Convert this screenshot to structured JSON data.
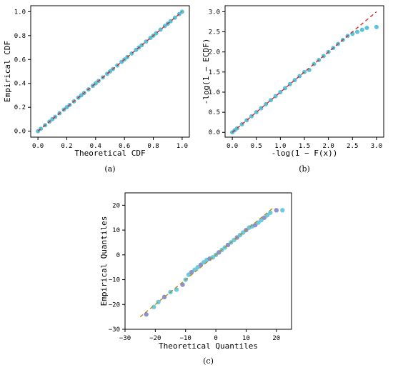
{
  "colors": {
    "points": "#46bdd6",
    "points_c": "#5fc3dc",
    "points_c_dark": "#7f86c6",
    "ref_line": "#d62728",
    "ref_line_c": "#b88a1c"
  },
  "chart_data": [
    {
      "id": "a",
      "type": "scatter",
      "panel_label": "(a)",
      "xlabel": "Theoretical CDF",
      "ylabel": "Empirical CDF",
      "xlim": [
        -0.05,
        1.05
      ],
      "ylim": [
        -0.05,
        1.05
      ],
      "xticks": [
        0.0,
        0.2,
        0.4,
        0.6,
        0.8,
        1.0
      ],
      "yticks": [
        0.0,
        0.2,
        0.4,
        0.6,
        0.8,
        1.0
      ],
      "xtick_labels": [
        "0.0",
        "0.2",
        "0.4",
        "0.6",
        "0.8",
        "1.0"
      ],
      "ytick_labels": [
        "0.0",
        "0.2",
        "0.4",
        "0.6",
        "0.8",
        "1.0"
      ],
      "ref_line": {
        "style": "dashed",
        "x": [
          0,
          1
        ],
        "y": [
          0,
          1
        ]
      },
      "points": {
        "x": [
          0.0,
          0.02,
          0.05,
          0.08,
          0.1,
          0.12,
          0.15,
          0.18,
          0.2,
          0.22,
          0.25,
          0.28,
          0.3,
          0.32,
          0.35,
          0.38,
          0.4,
          0.42,
          0.45,
          0.48,
          0.5,
          0.52,
          0.55,
          0.58,
          0.6,
          0.62,
          0.65,
          0.68,
          0.7,
          0.72,
          0.75,
          0.78,
          0.8,
          0.82,
          0.85,
          0.88,
          0.9,
          0.92,
          0.95,
          0.98,
          1.0
        ],
        "y": [
          0.0,
          0.02,
          0.05,
          0.08,
          0.1,
          0.12,
          0.15,
          0.18,
          0.2,
          0.22,
          0.25,
          0.28,
          0.3,
          0.32,
          0.35,
          0.38,
          0.4,
          0.42,
          0.45,
          0.48,
          0.5,
          0.52,
          0.55,
          0.58,
          0.6,
          0.62,
          0.65,
          0.68,
          0.7,
          0.72,
          0.75,
          0.78,
          0.8,
          0.82,
          0.85,
          0.88,
          0.9,
          0.92,
          0.95,
          0.98,
          1.0
        ]
      }
    },
    {
      "id": "b",
      "type": "scatter",
      "panel_label": "(b)",
      "xlabel": "-log(1 − F(x))",
      "ylabel": "-log(1 − ECDF)",
      "xlim": [
        -0.15,
        3.15
      ],
      "ylim": [
        -0.12,
        3.15
      ],
      "xticks": [
        0.0,
        0.5,
        1.0,
        1.5,
        2.0,
        2.5,
        3.0
      ],
      "yticks": [
        0.0,
        0.5,
        1.0,
        1.5,
        2.0,
        2.5,
        3.0
      ],
      "xtick_labels": [
        "0.0",
        "0.5",
        "1.0",
        "1.5",
        "2.0",
        "2.5",
        "3.0"
      ],
      "ytick_labels": [
        "0.0",
        "0.5",
        "1.0",
        "1.5",
        "2.0",
        "2.5",
        "3.0"
      ],
      "ref_line": {
        "style": "dashed",
        "x": [
          0,
          3
        ],
        "y": [
          0,
          3
        ]
      },
      "points": {
        "x": [
          0.0,
          0.05,
          0.1,
          0.2,
          0.3,
          0.4,
          0.5,
          0.6,
          0.7,
          0.8,
          0.9,
          1.0,
          1.1,
          1.2,
          1.3,
          1.4,
          1.5,
          1.6,
          1.7,
          1.8,
          1.9,
          2.0,
          2.1,
          2.2,
          2.3,
          2.4,
          2.5,
          2.6,
          2.7,
          2.8,
          3.0
        ],
        "y": [
          0.0,
          0.05,
          0.1,
          0.2,
          0.3,
          0.4,
          0.5,
          0.6,
          0.7,
          0.8,
          0.9,
          1.0,
          1.1,
          1.2,
          1.3,
          1.4,
          1.5,
          1.55,
          1.7,
          1.8,
          1.9,
          2.0,
          2.1,
          2.2,
          2.3,
          2.4,
          2.45,
          2.5,
          2.55,
          2.6,
          2.62
        ]
      }
    },
    {
      "id": "c",
      "type": "scatter",
      "panel_label": "(c)",
      "xlabel": "Theoretical Quantiles",
      "ylabel": "Empirical Quantiles",
      "xlim": [
        -30,
        25
      ],
      "ylim": [
        -30,
        25
      ],
      "xticks": [
        -30,
        -20,
        -10,
        0,
        10,
        20
      ],
      "yticks": [
        -30,
        -20,
        -10,
        0,
        10,
        20
      ],
      "xtick_labels": [
        "−30",
        "−20",
        "−10",
        "0",
        "10",
        "20"
      ],
      "ytick_labels": [
        "−30",
        "−20",
        "−10",
        "0",
        "10",
        "20"
      ],
      "ref_line": {
        "style": "dashed",
        "x": [
          -25,
          19
        ],
        "y": [
          -25,
          19
        ]
      },
      "points": {
        "x": [
          -23,
          -20.5,
          -19,
          -17,
          -15,
          -13,
          -11,
          -10,
          -9,
          -8,
          -7,
          -6,
          -5,
          -4,
          -3,
          -2,
          -1,
          0,
          1,
          2,
          3,
          4,
          5,
          6,
          7,
          8,
          9,
          10,
          11,
          12,
          13,
          14,
          15,
          16,
          17,
          18,
          20,
          22
        ],
        "y": [
          -24,
          -21,
          -19,
          -17,
          -15,
          -14,
          -12,
          -10,
          -8,
          -7,
          -6,
          -5,
          -4,
          -3,
          -2,
          -1.5,
          -1,
          0,
          1,
          2,
          3,
          4,
          5,
          6,
          7,
          8,
          9,
          10,
          11,
          11.5,
          12,
          13,
          14,
          15,
          16,
          17,
          18,
          18
        ]
      }
    }
  ]
}
